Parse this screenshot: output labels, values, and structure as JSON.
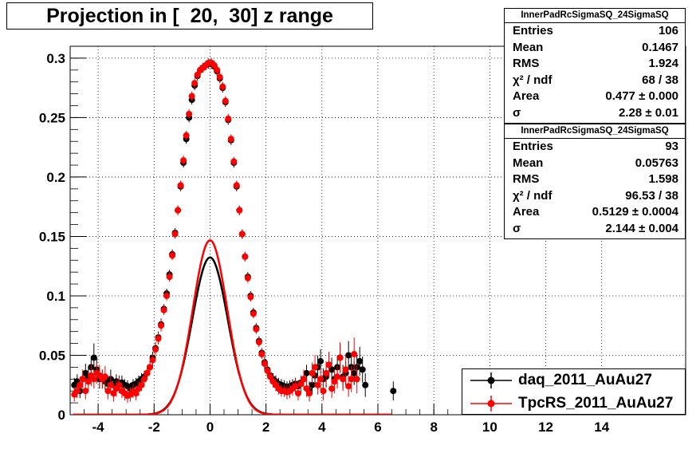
{
  "title": "Projection in [  20,  30] z range",
  "stats": [
    {
      "name": "InnerPadRcSigmaSQ_24SigmaSQ",
      "rows": [
        {
          "label": "Entries",
          "value": "106"
        },
        {
          "label": "Mean",
          "value": "0.1467"
        },
        {
          "label": "RMS",
          "value": "1.924"
        },
        {
          "label": "χ² / ndf",
          "value": "68 / 38"
        },
        {
          "label": "Area",
          "value": "0.477 ± 0.000"
        },
        {
          "label": "σ",
          "value": "2.28 ± 0.01"
        }
      ]
    },
    {
      "name": "InnerPadRcSigmaSQ_24SigmaSQ",
      "rows": [
        {
          "label": "Entries",
          "value": "93"
        },
        {
          "label": "Mean",
          "value": "0.05763"
        },
        {
          "label": "RMS",
          "value": "1.598"
        },
        {
          "label": "χ² / ndf",
          "value": "96.53 / 38"
        },
        {
          "label": "Area",
          "value": "0.5129 ± 0.0004"
        },
        {
          "label": "σ",
          "value": "2.144 ± 0.004"
        }
      ]
    }
  ],
  "legend": [
    {
      "label": "daq_2011_AuAu27",
      "color": "#000000"
    },
    {
      "label": "TpcRS_2011_AuAu27",
      "color": "#ff0000"
    }
  ],
  "chart_data": {
    "type": "scatter",
    "title": "Projection in [  20,  30] z range",
    "xlim": [
      -5,
      17
    ],
    "ylim": [
      0,
      0.31
    ],
    "xticks": [
      "-4",
      "-2",
      "0",
      "2",
      "4",
      "6",
      "8",
      "10",
      "12",
      "14"
    ],
    "yticks": [
      "0",
      "0.05",
      "0.1",
      "0.15",
      "0.2",
      "0.25",
      "0.3"
    ],
    "grid": true,
    "legend_position": "bottom-right",
    "series": [
      {
        "name": "daq_2011_AuAu27",
        "color": "#000000",
        "x": [
          -4.85,
          -4.75,
          -4.65,
          -4.55,
          -4.45,
          -4.35,
          -4.25,
          -4.15,
          -4.05,
          -3.95,
          -3.85,
          -3.75,
          -3.65,
          -3.55,
          -3.45,
          -3.35,
          -3.25,
          -3.15,
          -3.05,
          -2.95,
          -2.85,
          -2.75,
          -2.65,
          -2.55,
          -2.45,
          -2.35,
          -2.25,
          -2.15,
          -2.05,
          -1.95,
          -1.85,
          -1.75,
          -1.65,
          -1.55,
          -1.45,
          -1.35,
          -1.25,
          -1.15,
          -1.05,
          -0.95,
          -0.85,
          -0.75,
          -0.65,
          -0.55,
          -0.45,
          -0.35,
          -0.25,
          -0.15,
          -0.05,
          0.05,
          0.15,
          0.25,
          0.35,
          0.45,
          0.55,
          0.65,
          0.75,
          0.85,
          0.95,
          1.05,
          1.15,
          1.25,
          1.35,
          1.45,
          1.55,
          1.65,
          1.75,
          1.85,
          1.95,
          2.05,
          2.15,
          2.25,
          2.35,
          2.45,
          2.55,
          2.65,
          2.75,
          2.85,
          2.95,
          3.05,
          3.15,
          3.25,
          3.35,
          3.45,
          3.55,
          3.65,
          3.75,
          3.85,
          3.95,
          4.05,
          4.15,
          4.25,
          4.35,
          4.45,
          4.55,
          4.65,
          4.75,
          4.85,
          4.95,
          5.05,
          5.15,
          5.25,
          5.35,
          5.45,
          5.55,
          6.55
        ],
        "y": [
          0.025,
          0.028,
          0.02,
          0.03,
          0.035,
          0.032,
          0.04,
          0.048,
          0.038,
          0.03,
          0.03,
          0.028,
          0.026,
          0.03,
          0.025,
          0.028,
          0.027,
          0.027,
          0.025,
          0.024,
          0.022,
          0.025,
          0.026,
          0.028,
          0.03,
          0.032,
          0.035,
          0.04,
          0.048,
          0.056,
          0.065,
          0.076,
          0.089,
          0.102,
          0.118,
          0.135,
          0.153,
          0.172,
          0.192,
          0.212,
          0.232,
          0.25,
          0.265,
          0.277,
          0.285,
          0.29,
          0.292,
          0.294,
          0.295,
          0.295,
          0.293,
          0.289,
          0.283,
          0.275,
          0.263,
          0.248,
          0.231,
          0.212,
          0.192,
          0.172,
          0.152,
          0.133,
          0.116,
          0.1,
          0.086,
          0.073,
          0.062,
          0.052,
          0.044,
          0.038,
          0.033,
          0.03,
          0.028,
          0.026,
          0.025,
          0.024,
          0.023,
          0.024,
          0.025,
          0.026,
          0.024,
          0.027,
          0.03,
          0.035,
          0.02,
          0.025,
          0.033,
          0.04,
          0.045,
          0.03,
          0.032,
          0.042,
          0.038,
          0.03,
          0.04,
          0.048,
          0.032,
          0.035,
          0.05,
          0.04,
          0.035,
          0.04,
          0.045,
          0.038,
          0.025,
          0.02
        ],
        "error": [
          0.006,
          0.006,
          0.006,
          0.007,
          0.008,
          0.008,
          0.009,
          0.012,
          0.01,
          0.008,
          0.008,
          0.007,
          0.007,
          0.008,
          0.006,
          0.006,
          0.006,
          0.006,
          0.005,
          0.005,
          0.005,
          0.005,
          0.005,
          0.005,
          0.005,
          0.005,
          0.005,
          0.005,
          0.005,
          0.005,
          0.005,
          0.005,
          0.004,
          0.004,
          0.004,
          0.004,
          0.004,
          0.004,
          0.004,
          0.004,
          0.004,
          0.004,
          0.004,
          0.004,
          0.004,
          0.004,
          0.004,
          0.004,
          0.004,
          0.004,
          0.004,
          0.004,
          0.004,
          0.004,
          0.004,
          0.004,
          0.004,
          0.004,
          0.004,
          0.004,
          0.004,
          0.004,
          0.004,
          0.004,
          0.004,
          0.004,
          0.004,
          0.004,
          0.005,
          0.005,
          0.005,
          0.005,
          0.005,
          0.005,
          0.005,
          0.005,
          0.005,
          0.005,
          0.005,
          0.005,
          0.005,
          0.006,
          0.006,
          0.007,
          0.008,
          0.008,
          0.009,
          0.01,
          0.01,
          0.009,
          0.009,
          0.01,
          0.01,
          0.009,
          0.01,
          0.012,
          0.01,
          0.01,
          0.012,
          0.011,
          0.01,
          0.011,
          0.012,
          0.011,
          0.01,
          0.008
        ]
      },
      {
        "name": "TpcRS_2011_AuAu27",
        "color": "#ff0000",
        "x": [
          -4.85,
          -4.75,
          -4.65,
          -4.55,
          -4.45,
          -4.35,
          -4.25,
          -4.15,
          -4.05,
          -3.95,
          -3.85,
          -3.75,
          -3.65,
          -3.55,
          -3.45,
          -3.35,
          -3.25,
          -3.15,
          -3.05,
          -2.95,
          -2.85,
          -2.75,
          -2.65,
          -2.55,
          -2.45,
          -2.35,
          -2.25,
          -2.15,
          -2.05,
          -1.95,
          -1.85,
          -1.75,
          -1.65,
          -1.55,
          -1.45,
          -1.35,
          -1.25,
          -1.15,
          -1.05,
          -0.95,
          -0.85,
          -0.75,
          -0.65,
          -0.55,
          -0.45,
          -0.35,
          -0.25,
          -0.15,
          -0.05,
          0.05,
          0.15,
          0.25,
          0.35,
          0.45,
          0.55,
          0.65,
          0.75,
          0.85,
          0.95,
          1.05,
          1.15,
          1.25,
          1.35,
          1.45,
          1.55,
          1.65,
          1.75,
          1.85,
          1.95,
          2.05,
          2.15,
          2.25,
          2.35,
          2.45,
          2.55,
          2.65,
          2.75,
          2.85,
          2.95,
          3.05,
          3.15,
          3.25,
          3.35,
          3.45,
          3.55,
          3.65,
          3.75,
          3.85,
          3.95,
          4.05,
          4.15,
          4.25,
          4.35,
          4.45,
          4.55,
          4.65,
          4.75,
          4.85,
          4.95,
          5.05,
          5.15,
          5.25
        ],
        "y": [
          0.017,
          0.02,
          0.025,
          0.03,
          0.02,
          0.028,
          0.033,
          0.03,
          0.035,
          0.033,
          0.03,
          0.032,
          0.02,
          0.025,
          0.018,
          0.022,
          0.025,
          0.02,
          0.018,
          0.016,
          0.017,
          0.02,
          0.018,
          0.022,
          0.025,
          0.03,
          0.035,
          0.04,
          0.046,
          0.055,
          0.064,
          0.075,
          0.088,
          0.1,
          0.116,
          0.134,
          0.152,
          0.172,
          0.193,
          0.214,
          0.235,
          0.253,
          0.268,
          0.279,
          0.286,
          0.29,
          0.292,
          0.294,
          0.296,
          0.296,
          0.294,
          0.29,
          0.284,
          0.276,
          0.264,
          0.249,
          0.232,
          0.213,
          0.193,
          0.172,
          0.152,
          0.133,
          0.115,
          0.099,
          0.085,
          0.072,
          0.061,
          0.051,
          0.043,
          0.037,
          0.032,
          0.028,
          0.025,
          0.022,
          0.02,
          0.02,
          0.019,
          0.02,
          0.022,
          0.024,
          0.018,
          0.026,
          0.03,
          0.022,
          0.018,
          0.035,
          0.04,
          0.025,
          0.03,
          0.02,
          0.035,
          0.042,
          0.022,
          0.028,
          0.032,
          0.048,
          0.03,
          0.038,
          0.024,
          0.03,
          0.051,
          0.03
        ],
        "error": [
          0.006,
          0.006,
          0.007,
          0.008,
          0.007,
          0.008,
          0.009,
          0.008,
          0.009,
          0.009,
          0.008,
          0.009,
          0.007,
          0.008,
          0.007,
          0.007,
          0.007,
          0.006,
          0.006,
          0.006,
          0.006,
          0.006,
          0.006,
          0.006,
          0.005,
          0.005,
          0.005,
          0.005,
          0.005,
          0.005,
          0.005,
          0.005,
          0.004,
          0.004,
          0.004,
          0.004,
          0.004,
          0.004,
          0.004,
          0.004,
          0.004,
          0.004,
          0.004,
          0.004,
          0.004,
          0.004,
          0.004,
          0.004,
          0.004,
          0.004,
          0.004,
          0.004,
          0.004,
          0.004,
          0.004,
          0.004,
          0.004,
          0.004,
          0.004,
          0.004,
          0.004,
          0.004,
          0.004,
          0.004,
          0.004,
          0.004,
          0.004,
          0.004,
          0.005,
          0.005,
          0.005,
          0.005,
          0.005,
          0.005,
          0.005,
          0.005,
          0.006,
          0.006,
          0.006,
          0.006,
          0.006,
          0.007,
          0.008,
          0.007,
          0.007,
          0.009,
          0.01,
          0.008,
          0.009,
          0.008,
          0.01,
          0.011,
          0.008,
          0.01,
          0.01,
          0.013,
          0.01,
          0.012,
          0.009,
          0.011,
          0.014,
          0.012
        ]
      }
    ],
    "fits": [
      {
        "series": "daq_2011_AuAu27",
        "color": "#000000",
        "area": 0.477,
        "sigma2": 2.28
      },
      {
        "series": "TpcRS_2011_AuAu27",
        "color": "#ff0000",
        "area": 0.5129,
        "sigma2": 2.144
      }
    ]
  }
}
